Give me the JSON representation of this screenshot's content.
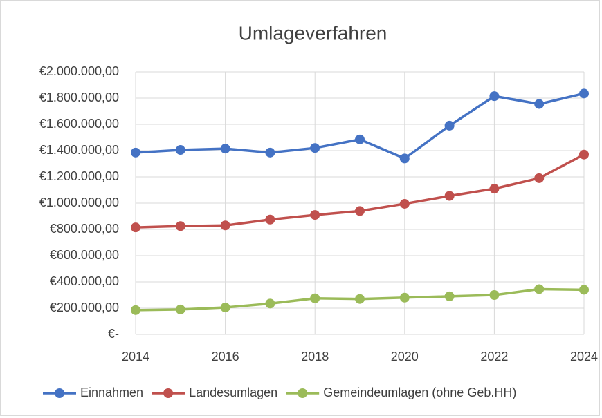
{
  "chart_data": {
    "type": "line",
    "title": "Umlageverfahren",
    "x": [
      2014,
      2015,
      2016,
      2017,
      2018,
      2019,
      2020,
      2021,
      2022,
      2023,
      2024
    ],
    "series": [
      {
        "name": "Einnahmen",
        "color": "#4472c4",
        "values": [
          1385000,
          1405000,
          1415000,
          1385000,
          1420000,
          1485000,
          1340000,
          1590000,
          1815000,
          1755000,
          1835000
        ]
      },
      {
        "name": "Landesumlagen",
        "color": "#c0504d",
        "values": [
          815000,
          825000,
          830000,
          875000,
          910000,
          940000,
          995000,
          1055000,
          1110000,
          1190000,
          1370000
        ]
      },
      {
        "name": "Gemeindeumlagen (ohne Geb.HH)",
        "color": "#9bbb59",
        "values": [
          185000,
          190000,
          205000,
          235000,
          275000,
          270000,
          280000,
          290000,
          300000,
          345000,
          340000
        ]
      }
    ],
    "xlim": [
      2014,
      2024
    ],
    "xticks": [
      2014,
      2016,
      2018,
      2020,
      2022,
      2024
    ],
    "ylim": [
      0,
      2000000
    ],
    "yticks": [
      {
        "value": 0,
        "label": "€-"
      },
      {
        "value": 200000,
        "label": "€200.000,00"
      },
      {
        "value": 400000,
        "label": "€400.000,00"
      },
      {
        "value": 600000,
        "label": "€600.000,00"
      },
      {
        "value": 800000,
        "label": "€800.000,00"
      },
      {
        "value": 1000000,
        "label": "€1.000.000,00"
      },
      {
        "value": 1200000,
        "label": "€1.200.000,00"
      },
      {
        "value": 1400000,
        "label": "€1.400.000,00"
      },
      {
        "value": 1600000,
        "label": "€1.600.000,00"
      },
      {
        "value": 1800000,
        "label": "€1.800.000,00"
      },
      {
        "value": 2000000,
        "label": "€2.000.000,00"
      }
    ],
    "grid": true,
    "legend": "bottom"
  }
}
